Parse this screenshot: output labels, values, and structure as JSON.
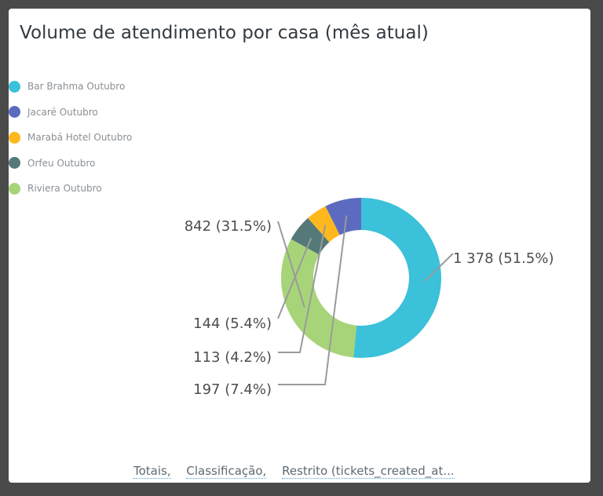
{
  "title": "Volume de atendimento por casa (mês atual)",
  "chart_data": {
    "type": "pie",
    "variant": "donut",
    "title": "Volume de atendimento por casa (mês atual)",
    "legend_position": "left-top",
    "slices": [
      {
        "name": "Bar Brahma Outubro",
        "value": 1378,
        "percent": 51.5,
        "label": "1 378 (51.5%)",
        "color": "#3bc1d9"
      },
      {
        "name": "Jacaré Outubro",
        "value": 197,
        "percent": 7.4,
        "label": "197 (7.4%)",
        "color": "#5c6bc0"
      },
      {
        "name": "Marabá Hotel Outubro",
        "value": 113,
        "percent": 4.2,
        "label": "113 (4.2%)",
        "color": "#ffb81c"
      },
      {
        "name": "Orfeu Outubro",
        "value": 144,
        "percent": 5.4,
        "label": "144 (5.4%)",
        "color": "#557878"
      },
      {
        "name": "Riviera Outubro",
        "value": 842,
        "percent": 31.5,
        "label": "842 (31.5%)",
        "color": "#a8d479"
      }
    ]
  },
  "footer": {
    "items": [
      "Totais,",
      "Classificação,",
      "Restrito (tickets_created_at..."
    ]
  }
}
